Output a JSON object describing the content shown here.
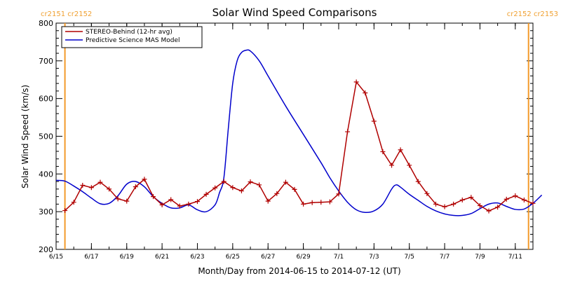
{
  "chart_data": {
    "type": "line",
    "title": "Solar Wind Speed Comparisons",
    "xlabel": "Month/Day from 2014-06-15 to 2014-07-12 (UT)",
    "ylabel": "Solar Wind Speed (km/s)",
    "ylim": [
      200,
      800
    ],
    "xlim": [
      "2014-06-15",
      "2014-07-12"
    ],
    "yticks": [
      200,
      300,
      400,
      500,
      600,
      700,
      800
    ],
    "xticks": [
      {
        "date": "2014-06-15",
        "label": "6/15"
      },
      {
        "date": "2014-06-17",
        "label": "6/17"
      },
      {
        "date": "2014-06-19",
        "label": "6/19"
      },
      {
        "date": "2014-06-21",
        "label": "6/21"
      },
      {
        "date": "2014-06-23",
        "label": "6/23"
      },
      {
        "date": "2014-06-25",
        "label": "6/25"
      },
      {
        "date": "2014-06-27",
        "label": "6/27"
      },
      {
        "date": "2014-06-29",
        "label": "6/29"
      },
      {
        "date": "2014-07-01",
        "label": "7/1"
      },
      {
        "date": "2014-07-03",
        "label": "7/3"
      },
      {
        "date": "2014-07-05",
        "label": "7/5"
      },
      {
        "date": "2014-07-07",
        "label": "7/7"
      },
      {
        "date": "2014-07-09",
        "label": "7/9"
      },
      {
        "date": "2014-07-11",
        "label": "7/11"
      }
    ],
    "corner_labels": {
      "left": "cr2151 cr2152",
      "right": "cr2152 cr2153"
    },
    "carrington_boundaries": [
      "2014-06-15 12:00",
      "2014-07-11 18:00"
    ],
    "legend_position": "top-left",
    "series": [
      {
        "name": "STEREO-Behind (12-hr avg)",
        "color": "#b00000",
        "marker": "plus",
        "points": [
          [
            "2014-06-15 12:00",
            303
          ],
          [
            "2014-06-16 00:00",
            325
          ],
          [
            "2014-06-16 12:00",
            370
          ],
          [
            "2014-06-17 00:00",
            364
          ],
          [
            "2014-06-17 12:00",
            378
          ],
          [
            "2014-06-18 00:00",
            360
          ],
          [
            "2014-06-18 12:00",
            334
          ],
          [
            "2014-06-19 00:00",
            328
          ],
          [
            "2014-06-19 12:00",
            366
          ],
          [
            "2014-06-20 00:00",
            386
          ],
          [
            "2014-06-20 12:00",
            340
          ],
          [
            "2014-06-21 00:00",
            318
          ],
          [
            "2014-06-21 12:00",
            332
          ],
          [
            "2014-06-22 00:00",
            315
          ],
          [
            "2014-06-22 12:00",
            320
          ],
          [
            "2014-06-23 00:00",
            327
          ],
          [
            "2014-06-23 12:00",
            346
          ],
          [
            "2014-06-24 00:00",
            363
          ],
          [
            "2014-06-24 12:00",
            380
          ],
          [
            "2014-06-25 00:00",
            364
          ],
          [
            "2014-06-25 12:00",
            355
          ],
          [
            "2014-06-26 00:00",
            379
          ],
          [
            "2014-06-26 12:00",
            371
          ],
          [
            "2014-06-27 00:00",
            328
          ],
          [
            "2014-06-27 12:00",
            348
          ],
          [
            "2014-06-28 00:00",
            378
          ],
          [
            "2014-06-28 12:00",
            359
          ],
          [
            "2014-06-29 00:00",
            320
          ],
          [
            "2014-06-29 12:00",
            324
          ],
          [
            "2014-06-30 00:00",
            325
          ],
          [
            "2014-06-30 12:00",
            326
          ],
          [
            "2014-07-01 00:00",
            347
          ],
          [
            "2014-07-01 12:00",
            512
          ],
          [
            "2014-07-02 00:00",
            644
          ],
          [
            "2014-07-02 12:00",
            615
          ],
          [
            "2014-07-03 00:00",
            540
          ],
          [
            "2014-07-03 12:00",
            459
          ],
          [
            "2014-07-04 00:00",
            423
          ],
          [
            "2014-07-04 12:00",
            464
          ],
          [
            "2014-07-05 00:00",
            423
          ],
          [
            "2014-07-05 12:00",
            380
          ],
          [
            "2014-07-06 00:00",
            348
          ],
          [
            "2014-07-06 12:00",
            320
          ],
          [
            "2014-07-07 00:00",
            313
          ],
          [
            "2014-07-07 12:00",
            320
          ],
          [
            "2014-07-08 00:00",
            331
          ],
          [
            "2014-07-08 12:00",
            338
          ],
          [
            "2014-07-09 00:00",
            316
          ],
          [
            "2014-07-09 12:00",
            302
          ],
          [
            "2014-07-10 00:00",
            312
          ],
          [
            "2014-07-10 12:00",
            333
          ],
          [
            "2014-07-11 00:00",
            342
          ],
          [
            "2014-07-11 12:00",
            331
          ],
          [
            "2014-07-12 00:00",
            322
          ]
        ]
      },
      {
        "name": "Predictive Science MAS Model",
        "color": "#0000cc",
        "marker": "none",
        "points": [
          [
            "2014-06-15 00:00",
            383
          ],
          [
            "2014-06-15 12:00",
            381
          ],
          [
            "2014-06-16 00:00",
            368
          ],
          [
            "2014-06-16 12:00",
            353
          ],
          [
            "2014-06-17 00:00",
            336
          ],
          [
            "2014-06-17 12:00",
            321
          ],
          [
            "2014-06-18 00:00",
            322
          ],
          [
            "2014-06-18 12:00",
            342
          ],
          [
            "2014-06-19 00:00",
            373
          ],
          [
            "2014-06-19 12:00",
            380
          ],
          [
            "2014-06-20 00:00",
            366
          ],
          [
            "2014-06-20 12:00",
            340
          ],
          [
            "2014-06-21 00:00",
            322
          ],
          [
            "2014-06-21 12:00",
            310
          ],
          [
            "2014-06-22 00:00",
            310
          ],
          [
            "2014-06-22 12:00",
            318
          ],
          [
            "2014-06-23 00:00",
            305
          ],
          [
            "2014-06-23 12:00",
            300
          ],
          [
            "2014-06-24 00:00",
            318
          ],
          [
            "2014-06-24 06:00",
            350
          ],
          [
            "2014-06-24 12:00",
            390
          ],
          [
            "2014-06-24 18:00",
            520
          ],
          [
            "2014-06-25 00:00",
            640
          ],
          [
            "2014-06-25 06:00",
            700
          ],
          [
            "2014-06-25 12:00",
            722
          ],
          [
            "2014-06-25 18:00",
            728
          ],
          [
            "2014-06-26 00:00",
            726
          ],
          [
            "2014-06-26 12:00",
            700
          ],
          [
            "2014-06-27 00:00",
            660
          ],
          [
            "2014-06-28 00:00",
            580
          ],
          [
            "2014-06-29 00:00",
            505
          ],
          [
            "2014-06-30 00:00",
            430
          ],
          [
            "2014-06-30 12:00",
            390
          ],
          [
            "2014-07-01 00:00",
            355
          ],
          [
            "2014-07-01 12:00",
            325
          ],
          [
            "2014-07-02 00:00",
            305
          ],
          [
            "2014-07-02 12:00",
            298
          ],
          [
            "2014-07-03 00:00",
            302
          ],
          [
            "2014-07-03 12:00",
            320
          ],
          [
            "2014-07-04 00:00",
            360
          ],
          [
            "2014-07-04 06:00",
            371
          ],
          [
            "2014-07-04 12:00",
            365
          ],
          [
            "2014-07-05 00:00",
            346
          ],
          [
            "2014-07-05 12:00",
            330
          ],
          [
            "2014-07-06 00:00",
            314
          ],
          [
            "2014-07-06 12:00",
            302
          ],
          [
            "2014-07-07 00:00",
            294
          ],
          [
            "2014-07-07 12:00",
            290
          ],
          [
            "2014-07-08 00:00",
            290
          ],
          [
            "2014-07-08 12:00",
            295
          ],
          [
            "2014-07-09 00:00",
            308
          ],
          [
            "2014-07-09 12:00",
            320
          ],
          [
            "2014-07-10 00:00",
            323
          ],
          [
            "2014-07-10 12:00",
            314
          ],
          [
            "2014-07-11 00:00",
            306
          ],
          [
            "2014-07-11 12:00",
            307
          ],
          [
            "2014-07-12 00:00",
            322
          ],
          [
            "2014-07-12 12:00",
            344
          ]
        ]
      }
    ]
  }
}
